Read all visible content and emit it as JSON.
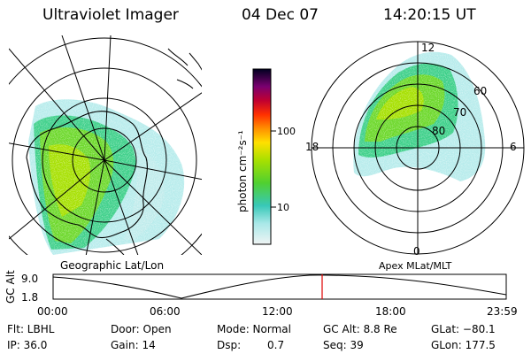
{
  "header": {
    "instrument": "Ultraviolet Imager",
    "date": "04 Dec 07",
    "time": "14:20:15 UT"
  },
  "geographic_panel": {
    "label": "Geographic Lat/Lon"
  },
  "apex_panel": {
    "label": "Apex  MLat/MLT",
    "mlt_labels": {
      "top": "12",
      "right": "6",
      "bottom": "0",
      "left": "18"
    },
    "mlat_labels": [
      "60",
      "70",
      "80"
    ]
  },
  "colorbar": {
    "unit_label": "photon cm⁻²s⁻¹",
    "ticks": [
      "100",
      "10"
    ],
    "colors": [
      "#000030",
      "#3a0050",
      "#7a0060",
      "#c00020",
      "#ff3000",
      "#ff8c00",
      "#ffd000",
      "#c8e000",
      "#70d820",
      "#30c8b0",
      "#a0e8e8",
      "#e8f4f4"
    ]
  },
  "altitude_plot": {
    "ylabel": "GC Alt",
    "yticks": [
      "9.0",
      "1.8"
    ],
    "xticks": [
      "00:00",
      "06:00",
      "12:00",
      "18:00",
      "23:59"
    ],
    "current_marker_color": "#e00000"
  },
  "info": {
    "flt_label": "Flt: LBHL",
    "door_label": "Door: Open",
    "mode_label": "Mode: Normal",
    "gcalt_label": "GC Alt: 8.8 Re",
    "glat_label": "GLat: −80.1",
    "ip_label": "IP: 36.0",
    "gain_label": "Gain: 14",
    "dsp_label": "Dsp:",
    "dsp_value": "0.7",
    "seq_label": "Seq: 39",
    "glon_label": "GLon: 177.5"
  }
}
